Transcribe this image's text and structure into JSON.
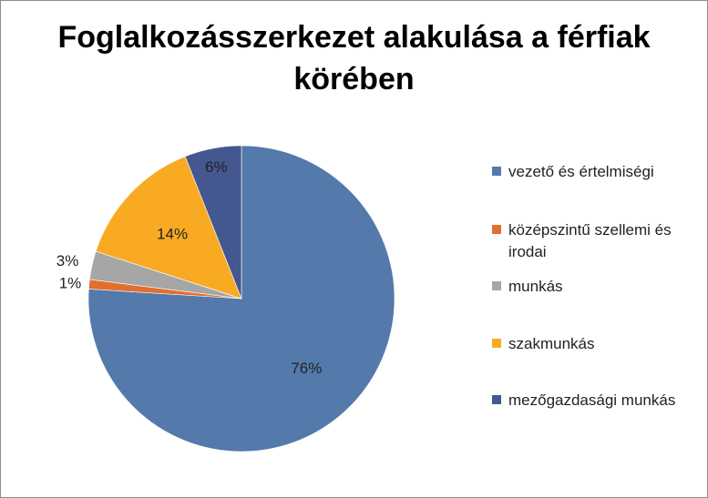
{
  "chart_data": {
    "type": "pie",
    "title_lines": [
      "Foglalkozásszerkezet alakulása a férfiak",
      "körében"
    ],
    "categories": [
      "vezető és értelmiségi",
      "középszintű szellemi és irodai",
      "munkás",
      "szakmunkás",
      "mezőgazdasági munkás"
    ],
    "values": [
      76,
      1,
      3,
      14,
      6
    ],
    "labels": [
      "76%",
      "1%",
      "3%",
      "14%",
      "6%"
    ],
    "colors": [
      "#5479ab",
      "#e06f30",
      "#a6a6a6",
      "#f8aa23",
      "#44578f"
    ],
    "start_angle": "12 o'clock",
    "direction": "clockwise",
    "legend": "right"
  }
}
